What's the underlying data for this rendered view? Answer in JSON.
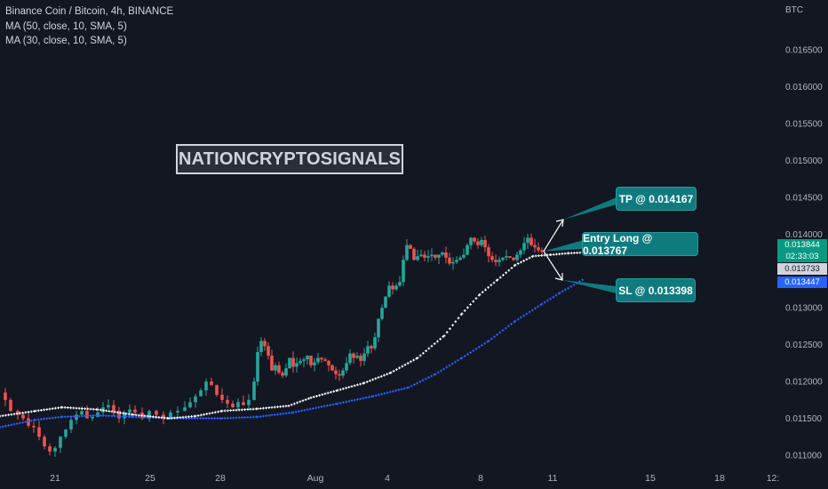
{
  "legend": {
    "symbol": "Binance Coin / Bitcoin, 4h, BINANCE",
    "ma1": "MA (50, close, 10, SMA, 5)",
    "ma2": "MA (30, close, 10, SMA, 5)"
  },
  "currency": "BTC",
  "watermark": "NATIONCRYPTOSIGNALS",
  "annotations": {
    "tp": "TP @ 0.014167",
    "entry": "Entry Long @ 0.013767",
    "sl": "SL @ 0.013398"
  },
  "price_tags": {
    "last": "0.013844",
    "countdown": "02:33:03",
    "ma_white": "0.013733",
    "ma_blue": "0.013447"
  },
  "colors": {
    "background": "#131722",
    "up": "#26a69a",
    "down": "#ef5350",
    "ma_white": "#ffffff",
    "ma_blue": "#2962ff",
    "callout": "#0f7b7f"
  },
  "chart_data": {
    "type": "candlestick",
    "y_axis": {
      "ticks": [
        "0.011000",
        "0.011500",
        "0.012000",
        "0.012500",
        "0.013000",
        "0.013500",
        "0.014000",
        "0.014500",
        "0.015000",
        "0.015500",
        "0.016000",
        "0.016500"
      ],
      "ylim": [
        0.0109,
        0.01695
      ]
    },
    "x_axis": {
      "ticks": [
        "21",
        "25",
        "28",
        "Aug",
        "4",
        "8",
        "11",
        "15",
        "18",
        "12:"
      ]
    },
    "price_path": [
      [
        0,
        0.01185
      ],
      [
        6,
        0.01175
      ],
      [
        12,
        0.0116
      ],
      [
        20,
        0.01155
      ],
      [
        26,
        0.0115
      ],
      [
        32,
        0.0114
      ],
      [
        38,
        0.01138
      ],
      [
        44,
        0.01125
      ],
      [
        50,
        0.01112
      ],
      [
        56,
        0.01105
      ],
      [
        62,
        0.0111
      ],
      [
        68,
        0.01125
      ],
      [
        74,
        0.01135
      ],
      [
        80,
        0.01148
      ],
      [
        86,
        0.01155
      ],
      [
        92,
        0.0116
      ],
      [
        98,
        0.0115
      ],
      [
        104,
        0.01152
      ],
      [
        110,
        0.01158
      ],
      [
        116,
        0.01165
      ],
      [
        122,
        0.01168
      ],
      [
        128,
        0.0116
      ],
      [
        134,
        0.0115
      ],
      [
        140,
        0.01158
      ],
      [
        146,
        0.01162
      ],
      [
        152,
        0.01158
      ],
      [
        160,
        0.0115
      ],
      [
        168,
        0.0116
      ],
      [
        176,
        0.01155
      ],
      [
        184,
        0.0115
      ],
      [
        192,
        0.01158
      ],
      [
        200,
        0.0116
      ],
      [
        208,
        0.01165
      ],
      [
        214,
        0.01172
      ],
      [
        220,
        0.0118
      ],
      [
        226,
        0.01188
      ],
      [
        232,
        0.012
      ],
      [
        238,
        0.01195
      ],
      [
        244,
        0.01182
      ],
      [
        250,
        0.01175
      ],
      [
        256,
        0.0117
      ],
      [
        262,
        0.01165
      ],
      [
        268,
        0.01172
      ],
      [
        274,
        0.01168
      ],
      [
        280,
        0.01175
      ],
      [
        286,
        0.012
      ],
      [
        290,
        0.0124
      ],
      [
        294,
        0.01255
      ],
      [
        298,
        0.01248
      ],
      [
        302,
        0.01235
      ],
      [
        306,
        0.01215
      ],
      [
        310,
        0.01222
      ],
      [
        314,
        0.01212
      ],
      [
        318,
        0.01208
      ],
      [
        322,
        0.01218
      ],
      [
        326,
        0.01232
      ],
      [
        330,
        0.0122
      ],
      [
        334,
        0.01225
      ],
      [
        338,
        0.01228
      ],
      [
        342,
        0.0123
      ],
      [
        346,
        0.01235
      ],
      [
        350,
        0.01222
      ],
      [
        354,
        0.01226
      ],
      [
        358,
        0.01232
      ],
      [
        362,
        0.0123
      ],
      [
        366,
        0.01228
      ],
      [
        370,
        0.01222
      ],
      [
        374,
        0.01215
      ],
      [
        378,
        0.0121
      ],
      [
        382,
        0.01208
      ],
      [
        386,
        0.01215
      ],
      [
        390,
        0.01225
      ],
      [
        394,
        0.01238
      ],
      [
        398,
        0.01232
      ],
      [
        402,
        0.01235
      ],
      [
        406,
        0.01228
      ],
      [
        410,
        0.01238
      ],
      [
        414,
        0.01248
      ],
      [
        418,
        0.01245
      ],
      [
        422,
        0.0126
      ],
      [
        426,
        0.01285
      ],
      [
        430,
        0.013
      ],
      [
        434,
        0.01315
      ],
      [
        438,
        0.0133
      ],
      [
        442,
        0.01325
      ],
      [
        446,
        0.0133
      ],
      [
        450,
        0.01335
      ],
      [
        454,
        0.01365
      ],
      [
        458,
        0.01385
      ],
      [
        462,
        0.0138
      ],
      [
        466,
        0.01365
      ],
      [
        470,
        0.0137
      ],
      [
        474,
        0.01372
      ],
      [
        478,
        0.01368
      ],
      [
        482,
        0.0137
      ],
      [
        486,
        0.01372
      ],
      [
        490,
        0.01368
      ],
      [
        494,
        0.01372
      ],
      [
        498,
        0.01375
      ],
      [
        502,
        0.01368
      ],
      [
        506,
        0.0136
      ],
      [
        510,
        0.01362
      ],
      [
        514,
        0.01365
      ],
      [
        518,
        0.01368
      ],
      [
        522,
        0.01372
      ],
      [
        526,
        0.01385
      ],
      [
        530,
        0.01395
      ],
      [
        534,
        0.0139
      ],
      [
        538,
        0.01385
      ],
      [
        542,
        0.01392
      ],
      [
        546,
        0.01382
      ],
      [
        550,
        0.0137
      ],
      [
        554,
        0.01365
      ],
      [
        558,
        0.01362
      ],
      [
        562,
        0.01365
      ],
      [
        566,
        0.01368
      ],
      [
        570,
        0.0137
      ],
      [
        574,
        0.01368
      ],
      [
        578,
        0.01365
      ],
      [
        582,
        0.01372
      ],
      [
        586,
        0.01378
      ],
      [
        590,
        0.01388
      ],
      [
        594,
        0.01395
      ],
      [
        598,
        0.01385
      ],
      [
        602,
        0.01382
      ],
      [
        606,
        0.01378
      ],
      [
        610,
        0.01376
      ]
    ],
    "ma_white_path": [
      [
        0,
        0.01153
      ],
      [
        40,
        0.0116
      ],
      [
        70,
        0.01165
      ],
      [
        110,
        0.01162
      ],
      [
        150,
        0.01155
      ],
      [
        190,
        0.0115
      ],
      [
        220,
        0.01153
      ],
      [
        250,
        0.0116
      ],
      [
        290,
        0.01163
      ],
      [
        325,
        0.01167
      ],
      [
        350,
        0.01178
      ],
      [
        380,
        0.01188
      ],
      [
        410,
        0.01198
      ],
      [
        440,
        0.01212
      ],
      [
        470,
        0.01232
      ],
      [
        500,
        0.01262
      ],
      [
        520,
        0.01292
      ],
      [
        540,
        0.01318
      ],
      [
        560,
        0.01338
      ],
      [
        580,
        0.01358
      ],
      [
        600,
        0.0137
      ],
      [
        620,
        0.01372
      ],
      [
        640,
        0.01374
      ],
      [
        656,
        0.01375
      ]
    ],
    "ma_blue_path": [
      [
        0,
        0.01138
      ],
      [
        40,
        0.01148
      ],
      [
        70,
        0.01152
      ],
      [
        110,
        0.01154
      ],
      [
        150,
        0.01152
      ],
      [
        200,
        0.0115
      ],
      [
        250,
        0.0115
      ],
      [
        290,
        0.01152
      ],
      [
        330,
        0.01158
      ],
      [
        380,
        0.0117
      ],
      [
        420,
        0.0118
      ],
      [
        460,
        0.01192
      ],
      [
        490,
        0.0121
      ],
      [
        520,
        0.01232
      ],
      [
        550,
        0.01255
      ],
      [
        580,
        0.01282
      ],
      [
        610,
        0.01305
      ],
      [
        630,
        0.0132
      ],
      [
        656,
        0.01338
      ]
    ]
  }
}
